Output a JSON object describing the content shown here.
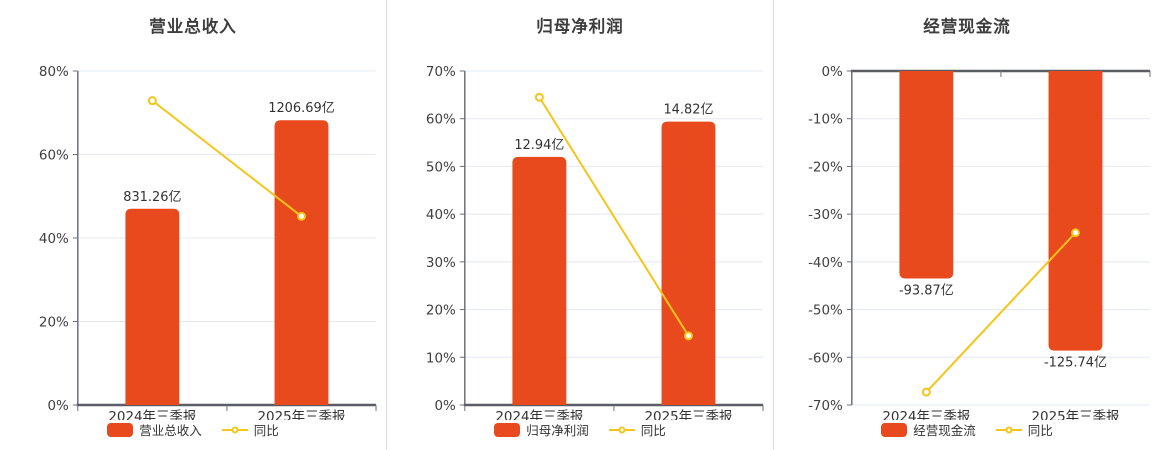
{
  "colors": {
    "bar": "#E8491D",
    "line": "#F5C51A",
    "grid": "#E3E8F3",
    "axis": "#6E7079",
    "baseline": "#5A5D64",
    "text": "#333333",
    "tick_text": "#404040",
    "title": "#3D3D3D"
  },
  "chart_data": [
    {
      "type": "bar",
      "title": "营业总收入",
      "categories": [
        "2024年三季报",
        "2025年三季报"
      ],
      "bars": {
        "name": "营业总收入",
        "value_labels": [
          "831.26亿",
          "1206.69亿"
        ],
        "axis_values": [
          47.0,
          68.2
        ]
      },
      "line": {
        "name": "同比",
        "values": [
          72.9,
          45.2
        ]
      },
      "y_axis": {
        "min": 0,
        "max": 80,
        "ticks": [
          0,
          20,
          40,
          60,
          80
        ],
        "tick_labels": [
          "0%",
          "20%",
          "40%",
          "60%",
          "80%"
        ]
      },
      "legend_position": "bottom",
      "grid": true
    },
    {
      "type": "bar",
      "title": "归母净利润",
      "categories": [
        "2024年三季报",
        "2025年三季报"
      ],
      "bars": {
        "name": "归母净利润",
        "value_labels": [
          "12.94亿",
          "14.82亿"
        ],
        "axis_values": [
          52.0,
          59.4
        ]
      },
      "line": {
        "name": "同比",
        "values": [
          64.5,
          14.5
        ]
      },
      "y_axis": {
        "min": 0,
        "max": 70,
        "ticks": [
          0,
          10,
          20,
          30,
          40,
          50,
          60,
          70
        ],
        "tick_labels": [
          "0%",
          "10%",
          "20%",
          "30%",
          "40%",
          "50%",
          "60%",
          "70%"
        ]
      },
      "legend_position": "bottom",
      "grid": true
    },
    {
      "type": "bar",
      "title": "经营现金流",
      "categories": [
        "2024年三季报",
        "2025年三季报"
      ],
      "bars": {
        "name": "经营现金流",
        "value_labels": [
          "-93.87亿",
          "-125.74亿"
        ],
        "axis_values": [
          -43.5,
          -58.6
        ]
      },
      "line": {
        "name": "同比",
        "values": [
          -67.3,
          -33.9
        ]
      },
      "y_axis": {
        "min": -70,
        "max": 0,
        "ticks": [
          0,
          -10,
          -20,
          -30,
          -40,
          -50,
          -60,
          -70
        ],
        "tick_labels": [
          "0%",
          "-10%",
          "-20%",
          "-30%",
          "-40%",
          "-50%",
          "-60%",
          "-70%"
        ]
      },
      "legend_position": "bottom",
      "grid": true
    }
  ]
}
